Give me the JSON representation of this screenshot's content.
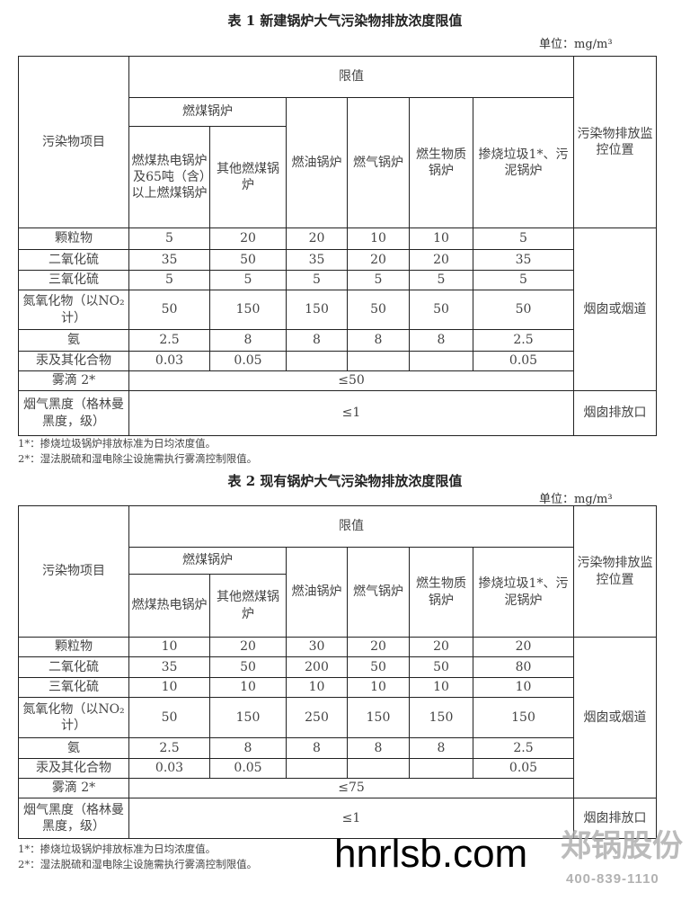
{
  "tables": [
    {
      "title": "表 1 新建锅炉大气污染物排放浓度限值",
      "unit": "单位：mg/m³",
      "headers": {
        "item": "污染物项目",
        "limit": "限值",
        "coal": "燃煤锅炉",
        "cols": [
          "燃煤热电锅炉及65吨（含）以上燃煤锅炉",
          "其他燃煤锅炉",
          "燃油锅炉",
          "燃气锅炉",
          "燃生物质锅炉",
          "掺烧垃圾1*、污泥锅炉"
        ],
        "monitor": "污染物排放监控位置"
      },
      "rows": [
        {
          "name": "颗粒物",
          "values": [
            "5",
            "20",
            "20",
            "10",
            "10",
            "5"
          ]
        },
        {
          "name": "二氧化硫",
          "values": [
            "35",
            "50",
            "35",
            "20",
            "20",
            "35"
          ]
        },
        {
          "name": "三氧化硫",
          "values": [
            "5",
            "5",
            "5",
            "5",
            "5",
            "5"
          ]
        },
        {
          "name": "氮氧化物（以NO₂计）",
          "values": [
            "50",
            "150",
            "150",
            "50",
            "50",
            "50"
          ]
        },
        {
          "name": "氨",
          "values": [
            "2.5",
            "8",
            "8",
            "8",
            "8",
            "2.5"
          ]
        },
        {
          "name": "汞及其化合物",
          "values": [
            "0.03",
            "0.05",
            "",
            "",
            "",
            "0.05"
          ]
        }
      ],
      "mist": {
        "name": "雾滴 2*",
        "value": "≤50"
      },
      "smoke": {
        "name": "烟气黑度（格林曼黑度，级）",
        "value": "≤1",
        "location": "烟囱排放口"
      },
      "location_main": "烟囱或烟道",
      "footnotes": [
        "1*：掺烧垃圾锅炉排放标准为日均浓度值。",
        "2*：湿法脱硫和湿电除尘设施需执行雾滴控制限值。"
      ]
    },
    {
      "title": "表 2 现有锅炉大气污染物排放浓度限值",
      "unit": "单位：mg/m³",
      "headers": {
        "item": "污染物项目",
        "limit": "限值",
        "coal": "燃煤锅炉",
        "cols": [
          "燃煤热电锅炉",
          "其他燃煤锅炉",
          "燃油锅炉",
          "燃气锅炉",
          "燃生物质锅炉",
          "掺烧垃圾1*、污泥锅炉"
        ],
        "monitor": "污染物排放监控位置"
      },
      "rows": [
        {
          "name": "颗粒物",
          "values": [
            "10",
            "20",
            "30",
            "20",
            "20",
            "20"
          ]
        },
        {
          "name": "二氧化硫",
          "values": [
            "35",
            "50",
            "200",
            "50",
            "50",
            "80"
          ]
        },
        {
          "name": "三氧化硫",
          "values": [
            "10",
            "10",
            "10",
            "10",
            "10",
            "10"
          ]
        },
        {
          "name": "氮氧化物（以NO₂计）",
          "values": [
            "50",
            "150",
            "250",
            "150",
            "150",
            "150"
          ]
        },
        {
          "name": "氨",
          "values": [
            "2.5",
            "8",
            "8",
            "8",
            "8",
            "2.5"
          ]
        },
        {
          "name": "汞及其化合物",
          "values": [
            "0.03",
            "0.05",
            "",
            "",
            "",
            "0.05"
          ]
        }
      ],
      "mist": {
        "name": "雾滴 2*",
        "value": "≤75"
      },
      "smoke": {
        "name": "烟气黑度（格林曼黑度，级）",
        "value": "≤1",
        "location": "烟囱排放口"
      },
      "location_main": "烟囱或烟道",
      "footnotes": [
        "1*：掺烧垃圾锅炉排放标准为日均浓度值。",
        "2*：湿法脱硫和湿电除尘设施需执行雾滴控制限值。"
      ]
    }
  ],
  "watermark": {
    "site": "hnrlsb.com",
    "brand": "郑锅股份",
    "phone": "400-839-1110"
  }
}
